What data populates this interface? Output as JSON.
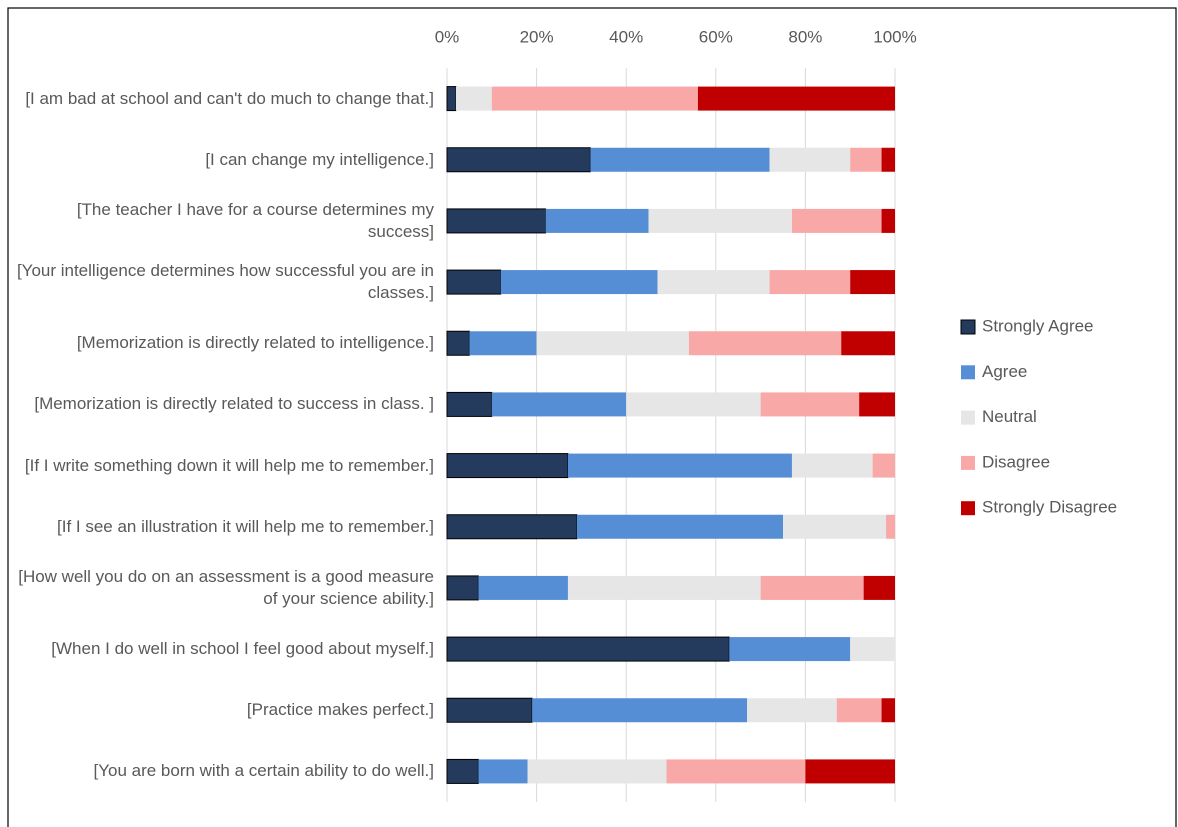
{
  "chart_data": {
    "type": "stacked-barh",
    "categories": [
      "[I am bad at school and can't do much to change that.]",
      "[I can change my intelligence.]",
      "[The teacher I have for a course determines my success]",
      "[Your intelligence determines how successful you are in classes.]",
      "[Memorization is directly related to intelligence.]",
      "[Memorization is directly related to success in class. ]",
      "[If I write something down it will help me to remember.]",
      "[If I see an illustration it will help me to remember.]",
      "[How well you do on an assessment is a good measure of your science ability.]",
      "[When I do well in school I feel good about myself.]",
      "[Practice makes perfect.]",
      "[You are born with a certain ability to do well.]"
    ],
    "series": [
      {
        "name": "Strongly Agree",
        "color": "#243b5e",
        "values": [
          2,
          32,
          22,
          12,
          5,
          10,
          27,
          29,
          7,
          63,
          19,
          7
        ]
      },
      {
        "name": "Agree",
        "color": "#558ed5",
        "values": [
          0,
          40,
          23,
          35,
          15,
          30,
          50,
          46,
          20,
          27,
          48,
          11
        ]
      },
      {
        "name": "Neutral",
        "color": "#e6e6e6",
        "values": [
          8,
          18,
          32,
          25,
          34,
          30,
          18,
          23,
          43,
          10,
          20,
          31
        ]
      },
      {
        "name": "Disagree",
        "color": "#f9a8a8",
        "values": [
          46,
          7,
          20,
          18,
          34,
          22,
          5,
          2,
          23,
          0,
          10,
          31
        ]
      },
      {
        "name": "Strongly Disagree",
        "color": "#c00000",
        "values": [
          44,
          3,
          3,
          10,
          12,
          8,
          0,
          0,
          7,
          0,
          3,
          20
        ]
      }
    ],
    "xlim": [
      0,
      100
    ],
    "xticks": [
      {
        "value": 0,
        "label": "0%"
      },
      {
        "value": 20,
        "label": "20%"
      },
      {
        "value": 40,
        "label": "40%"
      },
      {
        "value": 60,
        "label": "60%"
      },
      {
        "value": 80,
        "label": "80%"
      },
      {
        "value": 100,
        "label": "100%"
      }
    ],
    "grid": true,
    "legend": "right"
  }
}
